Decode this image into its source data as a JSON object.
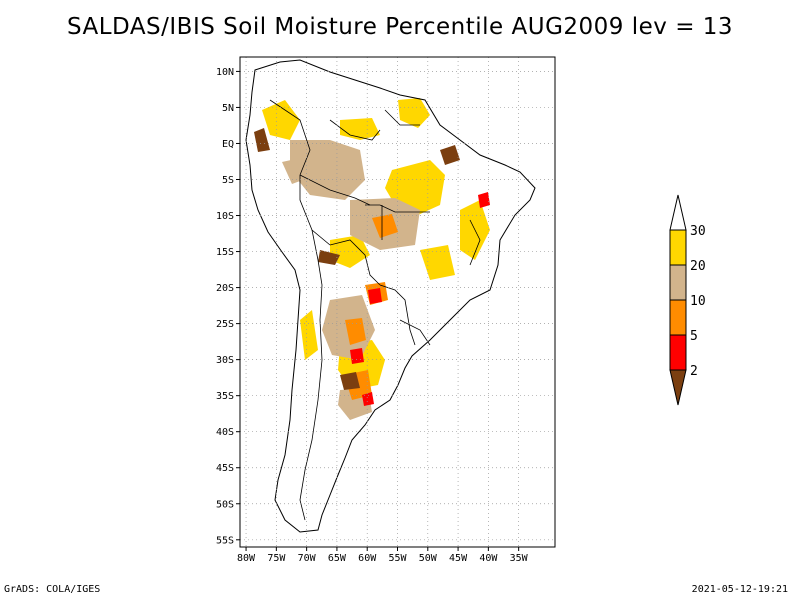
{
  "title": "SALDAS/IBIS Soil Moisture Percentile AUG2009 lev = 13",
  "footer": {
    "left": "GrADS: COLA/IGES",
    "right": "2021-05-12-19:21"
  },
  "map_data": {
    "projection": "lat-lon",
    "lon_range": [
      -81,
      -29
    ],
    "lat_range": [
      -56,
      12
    ],
    "grid": "dotted",
    "lon_ticks": [
      -80,
      -75,
      -70,
      -65,
      -60,
      -55,
      -50,
      -45,
      -40,
      -35
    ],
    "lon_tick_labels": [
      "80W",
      "75W",
      "70W",
      "65W",
      "60W",
      "55W",
      "50W",
      "45W",
      "40W",
      "35W"
    ],
    "lat_ticks": [
      10,
      5,
      0,
      -5,
      -10,
      -15,
      -20,
      -25,
      -30,
      -35,
      -40,
      -45,
      -50,
      -55
    ],
    "lat_tick_labels": [
      "10N",
      "5N",
      "EQ",
      "5S",
      "10S",
      "15S",
      "20S",
      "25S",
      "30S",
      "35S",
      "40S",
      "45S",
      "50S",
      "55S"
    ]
  },
  "legend": {
    "placement": "right",
    "colors": [
      "#7b3f10",
      "#ff0000",
      "#ff8c00",
      "#d2b48c",
      "#ffd700",
      "#ffffff"
    ],
    "labels": [
      "2",
      "5",
      "10",
      "20",
      "30"
    ]
  }
}
